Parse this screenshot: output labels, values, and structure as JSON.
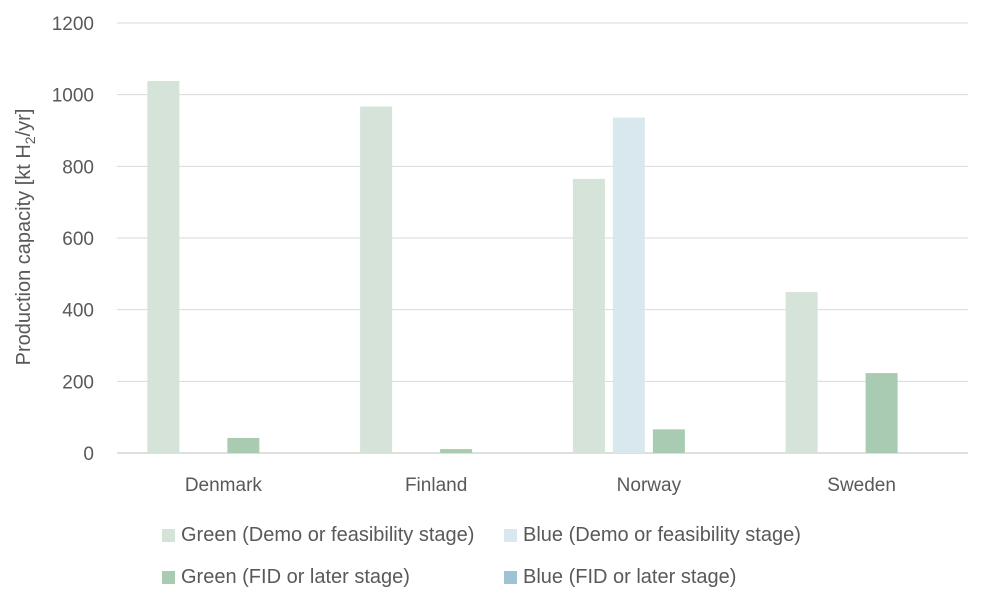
{
  "chart_data": {
    "type": "bar",
    "categories": [
      "Denmark",
      "Finland",
      "Norway",
      "Sweden"
    ],
    "series": [
      {
        "name": "Green (Demo or feasibility stage)",
        "color": "#d5e3d8",
        "values": [
          1038,
          967,
          765,
          449
        ]
      },
      {
        "name": "Blue (Demo or feasibility stage)",
        "color": "#d9e7ee",
        "values": [
          0,
          0,
          936,
          0
        ]
      },
      {
        "name": "Green (FID or later stage)",
        "color": "#a8cbb2",
        "values": [
          42,
          11,
          66,
          223
        ]
      },
      {
        "name": "Blue (FID or later stage)",
        "color": "#9ec3d4",
        "values": [
          0,
          0,
          0,
          0
        ]
      }
    ],
    "ylabel_pre": "Production capacity [kt H",
    "ylabel_sub": "2",
    "ylabel_post": "/yr]",
    "ylim": [
      0,
      1200
    ],
    "yticks": [
      "0",
      "200",
      "400",
      "600",
      "800",
      "1000",
      "1200"
    ],
    "grid": true,
    "legend_position": "bottom"
  }
}
